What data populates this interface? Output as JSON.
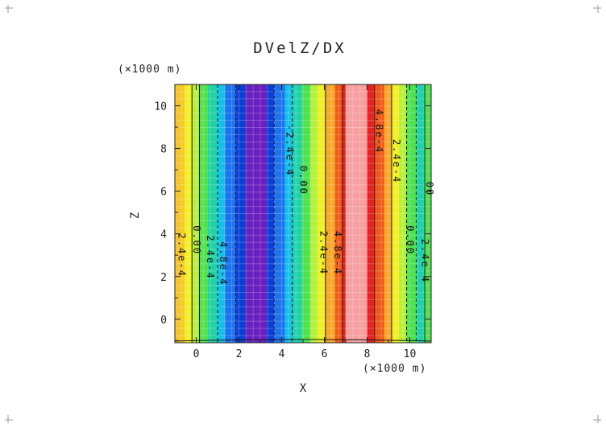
{
  "chart_data": {
    "type": "heatmap",
    "title": "DVelZ/DX",
    "xlabel": "X",
    "ylabel": "Z",
    "x_unit": "(×1000 m)",
    "y_unit": "(×1000 m)",
    "xlim": [
      -1.0,
      11.0
    ],
    "ylim": [
      -1.1,
      11.0
    ],
    "x_ticks": [
      0,
      2,
      4,
      6,
      8,
      10
    ],
    "x_tick_labels": [
      "0",
      "2",
      "4",
      "6",
      "8",
      "10"
    ],
    "y_ticks": [
      0,
      2,
      4,
      6,
      8,
      10
    ],
    "y_tick_labels": [
      "0",
      "2",
      "4",
      "6",
      "8",
      "10"
    ],
    "grid": true,
    "bands": [
      {
        "x0": -1.0,
        "x1": -0.55,
        "color": "#f7c62a"
      },
      {
        "x0": -0.55,
        "x1": -0.2,
        "color": "#f0f024"
      },
      {
        "x0": -0.2,
        "x1": 0.15,
        "color": "#b6f03a"
      },
      {
        "x0": 0.15,
        "x1": 0.55,
        "color": "#4fe24e"
      },
      {
        "x0": 0.55,
        "x1": 1.0,
        "color": "#20d2a8"
      },
      {
        "x0": 1.0,
        "x1": 1.35,
        "color": "#14bfe8"
      },
      {
        "x0": 1.35,
        "x1": 1.85,
        "color": "#1d72f0"
      },
      {
        "x0": 1.85,
        "x1": 2.3,
        "color": "#0a3fd6"
      },
      {
        "x0": 2.3,
        "x1": 3.3,
        "color": "#6a1fc0"
      },
      {
        "x0": 3.3,
        "x1": 3.65,
        "color": "#0a3fd6"
      },
      {
        "x0": 3.65,
        "x1": 4.15,
        "color": "#1d72f0"
      },
      {
        "x0": 4.15,
        "x1": 4.5,
        "color": "#14bfe8"
      },
      {
        "x0": 4.5,
        "x1": 4.95,
        "color": "#20d2a8"
      },
      {
        "x0": 4.95,
        "x1": 5.35,
        "color": "#4fe24e"
      },
      {
        "x0": 5.35,
        "x1": 5.7,
        "color": "#b6f03a"
      },
      {
        "x0": 5.7,
        "x1": 6.05,
        "color": "#f0f024"
      },
      {
        "x0": 6.05,
        "x1": 6.5,
        "color": "#f7a82a"
      },
      {
        "x0": 6.5,
        "x1": 6.85,
        "color": "#f0581a"
      },
      {
        "x0": 6.85,
        "x1": 7.0,
        "color": "#e82020"
      },
      {
        "x0": 7.0,
        "x1": 8.0,
        "color": "#f7a0a0"
      },
      {
        "x0": 8.0,
        "x1": 8.35,
        "color": "#e82020"
      },
      {
        "x0": 8.35,
        "x1": 8.8,
        "color": "#f0581a"
      },
      {
        "x0": 8.8,
        "x1": 9.15,
        "color": "#f7a82a"
      },
      {
        "x0": 9.15,
        "x1": 9.5,
        "color": "#f0f024"
      },
      {
        "x0": 9.5,
        "x1": 9.85,
        "color": "#b6f03a"
      },
      {
        "x0": 9.85,
        "x1": 10.3,
        "color": "#4fe24e"
      },
      {
        "x0": 10.3,
        "x1": 10.7,
        "color": "#20d2a8"
      },
      {
        "x0": 10.7,
        "x1": 11.0,
        "color": "#4fe24e"
      }
    ],
    "solid_contours_x": [
      -0.2,
      0.15,
      6.05,
      6.85,
      8.35,
      9.15,
      10.7
    ],
    "dashed_contours_x": [
      1.0,
      1.85,
      3.65,
      4.5,
      9.85,
      10.3
    ],
    "contour_labels": [
      {
        "text": "2.4e-4",
        "x": -0.7,
        "z": 3.0
      },
      {
        "text": "0.00",
        "x": 0.0,
        "z": 3.7
      },
      {
        "text": "2.4e-4",
        "x": 0.65,
        "z": 2.9
      },
      {
        "text": "4.8e-4",
        "x": 1.25,
        "z": 2.6
      },
      {
        "text": "-2.4e-4",
        "x": 4.35,
        "z": 7.9
      },
      {
        "text": "0.00",
        "x": 5.0,
        "z": 6.5
      },
      {
        "text": "2.4e-4",
        "x": 5.95,
        "z": 3.1
      },
      {
        "text": "4.8e-4",
        "x": 6.6,
        "z": 3.1
      },
      {
        "text": "4.8e-4",
        "x": 8.55,
        "z": 8.8
      },
      {
        "text": "2.4e-4",
        "x": 9.35,
        "z": 7.4
      },
      {
        "text": "0.00",
        "x": 10.0,
        "z": 3.7
      },
      {
        "text": "-2.4e-4",
        "x": 10.7,
        "z": 2.9
      },
      {
        "text": "00",
        "x": 10.9,
        "z": 6.1
      }
    ]
  }
}
